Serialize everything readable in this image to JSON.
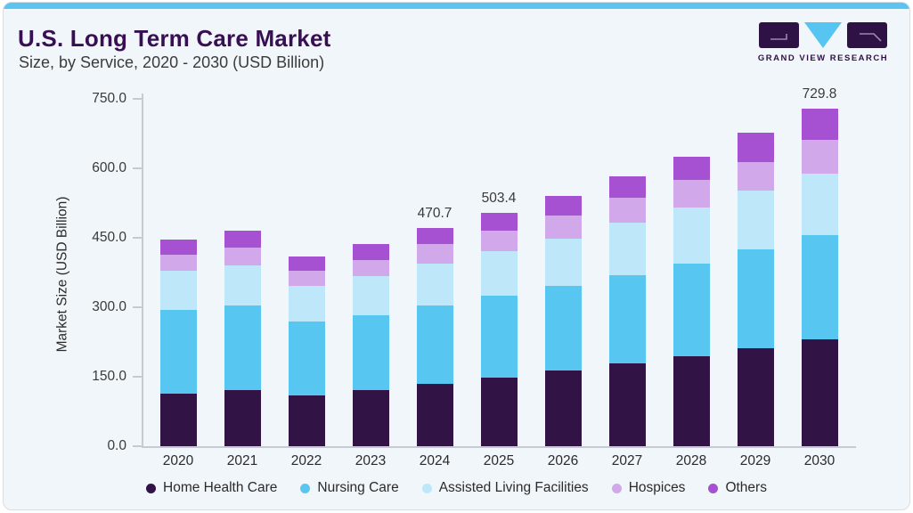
{
  "header": {
    "title": "U.S. Long Term Care Market",
    "subtitle": "Size, by Service, 2020 - 2030 (USD Billion)",
    "logo_text": "GRAND VIEW RESEARCH"
  },
  "theme": {
    "card_background": "#F1F6FA",
    "top_bar_accent": "#5BC4F0",
    "title_color": "#390F53",
    "axis_color": "#C6CBD1",
    "logo_purple": "#2F1245",
    "logo_cyan": "#56C5F1"
  },
  "chart_data": {
    "type": "bar",
    "stacked": true,
    "title": "U.S. Long Term Care Market",
    "subtitle": "Size, by Service, 2020 - 2030 (USD Billion)",
    "xlabel": "",
    "ylabel": "Market Size (USD Billion)",
    "ylim": [
      0,
      750
    ],
    "grid": false,
    "legend_position": "bottom",
    "ytick_values": [
      750,
      600,
      450,
      300,
      150,
      0
    ],
    "ytick_labels": [
      "750.0",
      "600.0",
      "450.0",
      "300.0",
      "150.0",
      "0.0"
    ],
    "categories": [
      "2020",
      "2021",
      "2022",
      "2023",
      "2024",
      "2025",
      "2026",
      "2027",
      "2028",
      "2029",
      "2030"
    ],
    "series": [
      {
        "name": "Home Health Care",
        "color": "#321345",
        "values": [
          113.5,
          121.0,
          110.0,
          120.5,
          135.3,
          148.5,
          163.5,
          178.5,
          194.2,
          212.3,
          230.8
        ]
      },
      {
        "name": "Nursing Care",
        "color": "#57C7F2",
        "values": [
          181.0,
          183.0,
          159.0,
          162.0,
          168.9,
          176.5,
          183.6,
          191.4,
          200.4,
          212.9,
          225.6
        ]
      },
      {
        "name": "Assisted Living Facilities",
        "color": "#BEE7FA",
        "values": [
          85.0,
          87.0,
          77.5,
          84.5,
          89.7,
          96.9,
          101.0,
          112.5,
          120.5,
          127.0,
          132.8
        ]
      },
      {
        "name": "Hospices",
        "color": "#D1A9EB",
        "values": [
          34.5,
          37.0,
          33.0,
          35.0,
          42.3,
          43.0,
          50.8,
          54.1,
          60.0,
          61.9,
          72.5
        ]
      },
      {
        "name": "Others",
        "color": "#A650D2",
        "values": [
          32.0,
          37.0,
          30.5,
          34.0,
          34.5,
          38.5,
          42.2,
          46.9,
          50.8,
          63.7,
          68.1
        ]
      }
    ],
    "annotations": [
      {
        "category": "2024",
        "text": "470.7"
      },
      {
        "category": "2025",
        "text": "503.4"
      },
      {
        "category": "2030",
        "text": "729.8"
      }
    ]
  }
}
